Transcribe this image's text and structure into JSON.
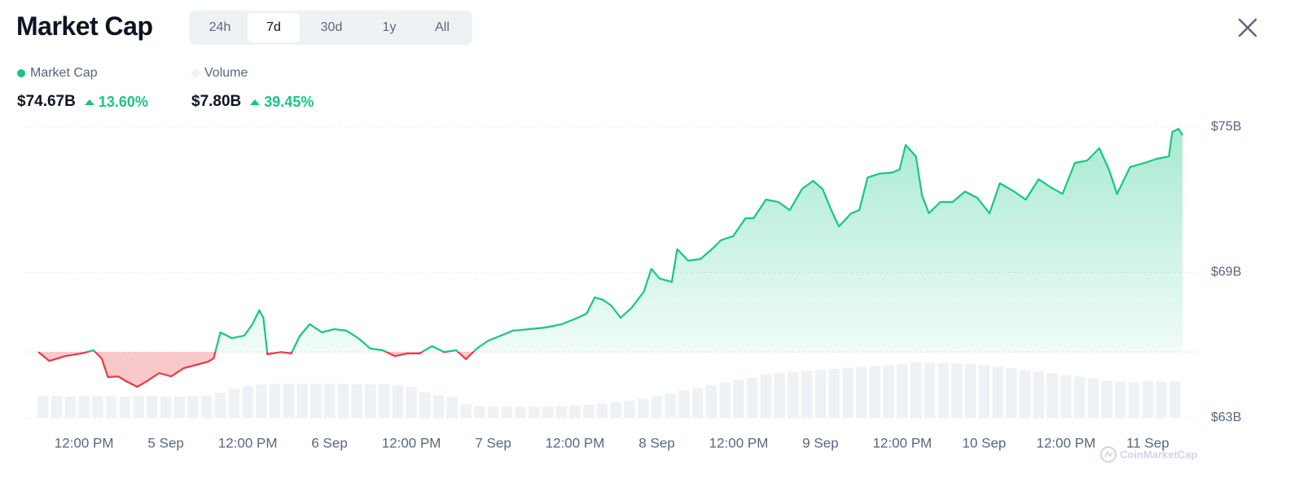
{
  "header": {
    "title": "Market Cap",
    "tabs": [
      "24h",
      "7d",
      "30d",
      "1y",
      "All"
    ],
    "active_tab": 1
  },
  "watermark": "CoinMarketCap",
  "chart_data": {
    "type": "line",
    "x": [
      5.3,
      6.9,
      9.3,
      11.6,
      13.4,
      14.6,
      15.5,
      17,
      18.2,
      19.8,
      21.2,
      23,
      24.8,
      26.6,
      28.4,
      30.2,
      31,
      32,
      33.7,
      35.5,
      36.7,
      37.7,
      38.3,
      38.9,
      40.9,
      42.4,
      43.6,
      45.1,
      46.9,
      48.7,
      50.5,
      52.2,
      54,
      55.8,
      57.6,
      59.4,
      61.2,
      63,
      64.8,
      66.6,
      68,
      69.6,
      71.3,
      73.1,
      74.9,
      77.3,
      79.7,
      82.1,
      83.9,
      85.7,
      86.9,
      88.1,
      89.3,
      90.7,
      92.3,
      94.1,
      95.2,
      96.4,
      98.2,
      99,
      100.6,
      102.4,
      104.2,
      105.4,
      107.2,
      109,
      110.2,
      112,
      113.8,
      115.5,
      117.3,
      118.9,
      120.3,
      121.7,
      122.7,
      124.5,
      125.7,
      126.9,
      128.7,
      130.5,
      131.6,
      132.5,
      134,
      134.9,
      135.9,
      137.6,
      139.4,
      141.2,
      143,
      144.8,
      146.3,
      148.4,
      150.1,
      152,
      153.8,
      155.5,
      157.3,
      159.1,
      160.9,
      162.3,
      163.5,
      165.4,
      167.5,
      169.3,
      171.1,
      171.6,
      172.5,
      173.1
    ],
    "series": [
      {
        "name": "Market Cap",
        "color": "#16c784",
        "down_color": "#ea3943",
        "latest": "$74.67B",
        "change": "13.60%",
        "values": [
          65.72,
          65.35,
          65.55,
          65.66,
          65.79,
          65.45,
          64.68,
          64.71,
          64.51,
          64.28,
          64.51,
          64.85,
          64.71,
          65.05,
          65.18,
          65.32,
          65.45,
          66.53,
          66.29,
          66.39,
          66.87,
          67.44,
          67.13,
          65.62,
          65.72,
          65.66,
          66.36,
          66.87,
          66.53,
          66.66,
          66.6,
          66.29,
          65.86,
          65.79,
          65.55,
          65.66,
          65.66,
          65.96,
          65.72,
          65.79,
          65.42,
          65.86,
          66.19,
          66.39,
          66.6,
          66.66,
          66.73,
          66.87,
          67.07,
          67.3,
          67.97,
          67.87,
          67.64,
          67.13,
          67.54,
          68.21,
          69.15,
          68.75,
          68.61,
          69.96,
          69.49,
          69.55,
          69.99,
          70.33,
          70.5,
          71.24,
          71.24,
          72.01,
          71.91,
          71.57,
          72.45,
          72.78,
          72.45,
          71.5,
          70.9,
          71.44,
          71.57,
          72.92,
          73.08,
          73.12,
          73.25,
          74.26,
          73.79,
          72.18,
          71.44,
          71.91,
          71.91,
          72.34,
          72.08,
          71.44,
          72.68,
          72.34,
          72.01,
          72.85,
          72.51,
          72.24,
          73.52,
          73.62,
          74.13,
          73.25,
          72.24,
          73.35,
          73.52,
          73.69,
          73.79,
          74.8,
          74.93,
          74.67
        ]
      },
      {
        "name": "Volume",
        "type": "bar",
        "axis": "y2",
        "color": "#eff2f5",
        "latest": "$7.80B",
        "change": "39.45%",
        "x": [
          6,
          8,
          10,
          12,
          14,
          16,
          18,
          20,
          22,
          24,
          26,
          28,
          30,
          32,
          34,
          36,
          38,
          40,
          42,
          44,
          46,
          48,
          50,
          52,
          54,
          56,
          58,
          60,
          62,
          64,
          66,
          68,
          70,
          72,
          74,
          76,
          78,
          80,
          82,
          84,
          86,
          88,
          90,
          92,
          94,
          96,
          98,
          100,
          102,
          104,
          106,
          108,
          110,
          112,
          114,
          116,
          118,
          120,
          122,
          124,
          126,
          128,
          130,
          132,
          134,
          136,
          138,
          140,
          142,
          144,
          146,
          148,
          150,
          152,
          154,
          156,
          158,
          160,
          162,
          164,
          166,
          168,
          170,
          172
        ],
        "values": [
          4.7,
          4.7,
          4.6,
          4.7,
          4.7,
          4.6,
          4.6,
          4.7,
          4.7,
          4.6,
          4.6,
          4.7,
          4.8,
          5.4,
          6.2,
          6.8,
          7.2,
          7.3,
          7.3,
          7.3,
          7.3,
          7.3,
          7.3,
          7.2,
          7.2,
          7.2,
          7.0,
          6.6,
          5.5,
          4.8,
          4.4,
          2.9,
          2.5,
          2.4,
          2.4,
          2.4,
          2.4,
          2.4,
          2.5,
          2.6,
          2.8,
          3.0,
          3.4,
          3.7,
          4.1,
          4.6,
          5.2,
          5.9,
          6.4,
          7.0,
          7.5,
          8.1,
          8.6,
          9.2,
          9.6,
          9.9,
          10.1,
          10.3,
          10.5,
          10.7,
          10.9,
          11.1,
          11.3,
          11.5,
          11.8,
          11.8,
          11.7,
          11.6,
          11.5,
          11.3,
          11.0,
          10.6,
          10.2,
          9.9,
          9.5,
          9.1,
          8.8,
          8.4,
          8.0,
          7.7,
          7.6,
          7.8,
          7.7,
          7.8
        ]
      }
    ],
    "xlim": [
      3.5,
      175
    ],
    "xticks": [
      {
        "value": 12,
        "label": "12:00 PM"
      },
      {
        "value": 24,
        "label": "5 Sep"
      },
      {
        "value": 36,
        "label": "12:00 PM"
      },
      {
        "value": 48,
        "label": "6 Sep"
      },
      {
        "value": 60,
        "label": "12:00 PM"
      },
      {
        "value": 72,
        "label": "7 Sep"
      },
      {
        "value": 84,
        "label": "12:00 PM"
      },
      {
        "value": 96,
        "label": "8 Sep"
      },
      {
        "value": 108,
        "label": "12:00 PM"
      },
      {
        "value": 120,
        "label": "9 Sep"
      },
      {
        "value": 132,
        "label": "12:00 PM"
      },
      {
        "value": 144,
        "label": "10 Sep"
      },
      {
        "value": 156,
        "label": "12:00 PM"
      },
      {
        "value": 168,
        "label": "11 Sep"
      }
    ],
    "ylim": [
      63,
      75
    ],
    "yticks": [
      {
        "value": 63,
        "label": "$63B"
      },
      {
        "value": 69,
        "label": "$69B"
      },
      {
        "value": 75,
        "label": "$75B"
      }
    ],
    "y2lim": [
      0,
      62
    ],
    "grid": true
  }
}
